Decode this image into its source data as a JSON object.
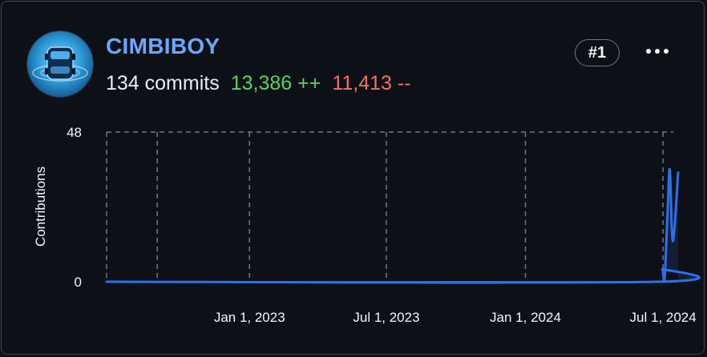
{
  "contributor": {
    "username": "CIMBIBOY",
    "commits": "134 commits",
    "additions": "13,386 ++",
    "deletions": "11,413 --",
    "rank": "#1"
  },
  "icons": {
    "avatar": "avatar-car-image",
    "more": "ellipsis-horizontal-icon"
  },
  "colors": {
    "username": "#6fa6ff",
    "additions": "#56d364",
    "deletions": "#f47067",
    "line": "#2f6fed"
  },
  "chart_data": {
    "type": "area",
    "ylabel": "Contributions",
    "xlabel": "",
    "yticks": [
      "0",
      "48"
    ],
    "ylim": [
      0,
      48
    ],
    "xlim": [
      "2022-06-26",
      "2024-07-21"
    ],
    "xticks": [
      {
        "date": "2022-09-01",
        "label": ""
      },
      {
        "date": "2023-01-01",
        "label": "Jan 1, 2023"
      },
      {
        "date": "2023-07-01",
        "label": "Jul 1, 2023"
      },
      {
        "date": "2024-01-01",
        "label": "Jan 1, 2024"
      },
      {
        "date": "2024-07-01",
        "label": "Jul 1, 2024"
      }
    ],
    "grid": "dashed",
    "series": [
      {
        "points": [
          {
            "x": "2022-06-26",
            "y": 0
          },
          {
            "x": "2024-06-23",
            "y": 0
          },
          {
            "x": "2024-06-30",
            "y": 4
          },
          {
            "x": "2024-07-03",
            "y": 1
          },
          {
            "x": "2024-07-07",
            "y": 22
          },
          {
            "x": "2024-07-10",
            "y": 36
          },
          {
            "x": "2024-07-14",
            "y": 13
          },
          {
            "x": "2024-07-21",
            "y": 35
          }
        ]
      }
    ]
  }
}
